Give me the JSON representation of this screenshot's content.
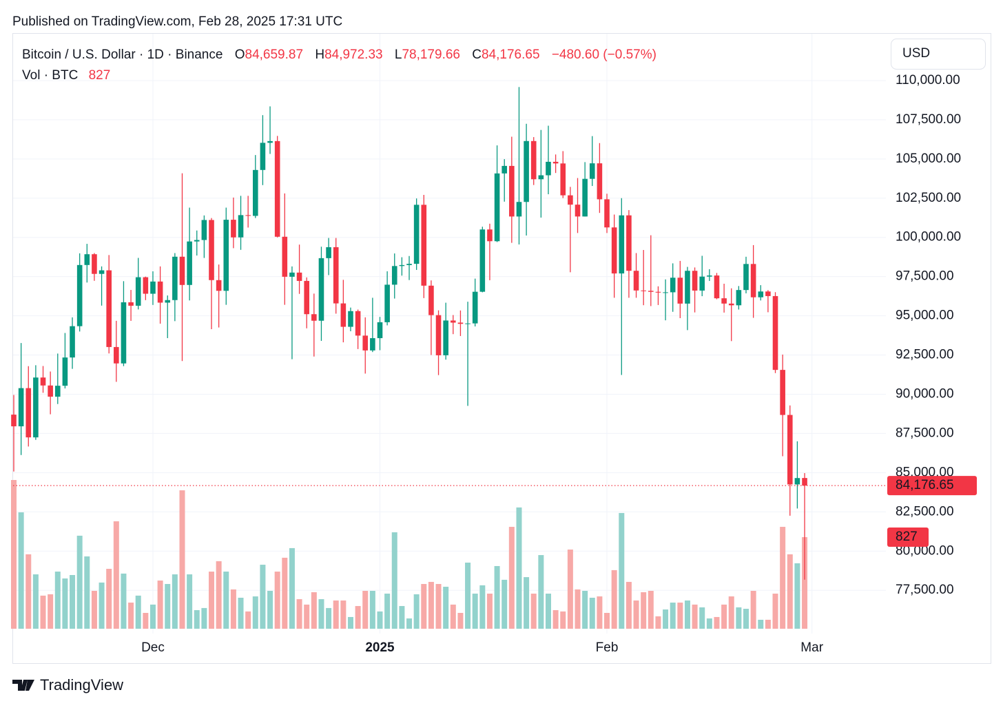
{
  "published": "Published on TradingView.com, Feb 28, 2025 17:31 UTC",
  "brand": "TradingView",
  "chart_data": {
    "type": "candlestick",
    "legend": {
      "symbol": "Bitcoin / U.S. Dollar · 1D · Binance",
      "fields": [
        {
          "key": "O",
          "value": "84,659.87"
        },
        {
          "key": "H",
          "value": "84,972.33"
        },
        {
          "key": "L",
          "value": "78,179.66"
        },
        {
          "key": "C",
          "value": "84,176.65"
        }
      ],
      "change": "−480.60 (−0.57%)",
      "volume_label": "Vol · BTC"
    },
    "currency": "USD",
    "last_close_label": "84,176.65",
    "up_color": "#089981",
    "down_color": "#f23645",
    "up_volume_color": "#92d2cc",
    "down_volume_color": "#f7a9a7",
    "grid": true,
    "ylim": [
      75050,
      112500
    ],
    "yticks": [
      {
        "value": 77500,
        "label": "77,500.00"
      },
      {
        "value": 80000,
        "label": "80,000.00"
      },
      {
        "value": 82500,
        "label": "82,500.00"
      },
      {
        "value": 85000,
        "label": "85,000.00"
      },
      {
        "value": 87500,
        "label": "87,500.00"
      },
      {
        "value": 90000,
        "label": "90,000.00"
      },
      {
        "value": 92500,
        "label": "92,500.00"
      },
      {
        "value": 95000,
        "label": "95,000.00"
      },
      {
        "value": 97500,
        "label": "97,500.00"
      },
      {
        "value": 100000,
        "label": "100,000.00"
      },
      {
        "value": 102500,
        "label": "102,500.00"
      },
      {
        "value": 105000,
        "label": "105,000.00"
      },
      {
        "value": 107500,
        "label": "107,500.00"
      },
      {
        "value": 110000,
        "label": "110,000.00"
      }
    ],
    "xticks": [
      {
        "value": 19,
        "label": "Dec"
      },
      {
        "value": 50,
        "label": "2025"
      },
      {
        "value": 81,
        "label": "Feb"
      },
      {
        "value": 109,
        "label": "Mar"
      }
    ],
    "open": [
      88700,
      87955,
      90390,
      87250,
      91066,
      90558,
      89845,
      90542,
      92343,
      94339,
      98239,
      98927,
      97673,
      97900,
      93010,
      91965,
      95863,
      95643,
      97460,
      96407,
      97185,
      95840,
      96002,
      98768,
      96967,
      99740,
      99832,
      101109,
      97276,
      96593,
      101125,
      100000,
      101420,
      101372,
      104298,
      106029,
      106140,
      100041,
      97490,
      97756,
      97225,
      95104,
      94686,
      98676,
      99376,
      95791,
      94299,
      95300,
      93738,
      92792,
      93576,
      94591,
      96984,
      98174,
      98236,
      98314,
      102078,
      96922,
      95043,
      92484,
      94701,
      94566,
      94488,
      94516,
      96534,
      100505,
      99756,
      104078,
      104557,
      101331,
      102260,
      106143,
      103706,
      103960,
      104819,
      104714,
      102682,
      102087,
      101332,
      103733,
      104722,
      102429,
      100635,
      97700,
      101405,
      97871,
      96615,
      96593,
      96529,
      96482,
      96500,
      97430,
      95778,
      97870,
      96608,
      97500,
      97570,
      96118,
      95780,
      95671,
      96644,
      98305,
      96181,
      96551,
      96258,
      91552,
      88680,
      84250,
      84659.87
    ],
    "high": [
      89956,
      93265,
      91790,
      91850,
      91800,
      91449,
      92594,
      93905,
      94902,
      98984,
      99588,
      99000,
      98150,
      98871,
      94681,
      97208,
      96650,
      98693,
      97499,
      97836,
      98150,
      96297,
      99000,
      104088,
      101898,
      100439,
      101400,
      101234,
      98270,
      101895,
      102540,
      102650,
      102650,
      105250,
      107793,
      108353,
      106470,
      102800,
      98150,
      99540,
      97448,
      96416,
      99404,
      99963,
      99962,
      97294,
      95525,
      95400,
      94903,
      96150,
      94929,
      97839,
      98976,
      98734,
      98813,
      102482,
      102712,
      97258,
      95350,
      95836,
      95050,
      95340,
      95900,
      97371,
      100681,
      100873,
      105865,
      104988,
      106422,
      109588,
      107240,
      106394,
      106850,
      107120,
      105286,
      105500,
      103221,
      103784,
      104800,
      106457,
      106012,
      102783,
      101456,
      102500,
      101740,
      99000,
      99197,
      100137,
      96880,
      97323,
      98345,
      98500,
      98119,
      98083,
      98826,
      97972,
      97732,
      97046,
      96753,
      96899,
      98766,
      99508,
      96955,
      96637,
      96508,
      92530,
      89286,
      87000,
      84972.33
    ],
    "low": [
      85072,
      86127,
      86668,
      87092,
      90093,
      88722,
      89376,
      90370,
      91619,
      94000,
      97122,
      97232,
      95650,
      92600,
      90791,
      91792,
      94677,
      95407,
      96000,
      95693,
      94500,
      93578,
      94660,
      92120,
      95981,
      98844,
      98689,
      94150,
      94256,
      95700,
      99311,
      99206,
      100626,
      101234,
      103333,
      105321,
      100000,
      95700,
      92232,
      96398,
      94202,
      92403,
      93404,
      97595,
      95137,
      93310,
      94014,
      92881,
      91317,
      92690,
      92807,
      94392,
      96100,
      97562,
      97280,
      97926,
      96132,
      92500,
      91220,
      92206,
      93831,
      93712,
      89256,
      94322,
      96500,
      97268,
      99700,
      102278,
      99651,
      99550,
      100119,
      103339,
      101262,
      102750,
      104106,
      102505,
      97777,
      100279,
      101328,
      103278,
      101560,
      100279,
      96150,
      91231,
      96150,
      96150,
      95676,
      95620,
      95688,
      94713,
      95256,
      94850,
      94088,
      95217,
      96252,
      97223,
      96055,
      95205,
      93388,
      95401,
      96432,
      94871,
      95979,
      95227,
      91349,
      86050,
      82256,
      82716,
      78179.66
    ],
    "close": [
      87955,
      90390,
      87250,
      91066,
      90558,
      89845,
      90542,
      92343,
      94339,
      98239,
      98927,
      97673,
      97900,
      93010,
      91965,
      95863,
      95643,
      97460,
      96407,
      97185,
      95840,
      96002,
      98768,
      96967,
      99740,
      99832,
      101109,
      97276,
      96593,
      101125,
      100000,
      101420,
      101372,
      104298,
      106029,
      106140,
      100041,
      97490,
      97756,
      97225,
      95104,
      94686,
      98676,
      99376,
      95791,
      94299,
      95300,
      93738,
      92792,
      93576,
      94591,
      96984,
      98174,
      98236,
      98314,
      102078,
      96922,
      95043,
      92484,
      94701,
      94566,
      94488,
      94516,
      96534,
      100505,
      99756,
      104078,
      104557,
      101331,
      102260,
      106143,
      103706,
      103960,
      104819,
      104714,
      102682,
      102087,
      101332,
      103733,
      104722,
      102429,
      100635,
      97700,
      101405,
      97871,
      96615,
      96593,
      96529,
      96482,
      96500,
      97430,
      95778,
      97870,
      96608,
      97500,
      97570,
      96118,
      95780,
      95671,
      96644,
      98305,
      96181,
      96551,
      96258,
      91552,
      88680,
      84250,
      84657,
      84176.65
    ],
    "volume": [
      1343,
      1051,
      672,
      491,
      299,
      311,
      516,
      454,
      485,
      840,
      653,
      342,
      417,
      541,
      970,
      498,
      236,
      299,
      143,
      218,
      435,
      404,
      491,
      1250,
      491,
      168,
      187,
      516,
      610,
      516,
      355,
      280,
      156,
      292,
      578,
      342,
      516,
      641,
      728,
      267,
      218,
      330,
      267,
      187,
      255,
      255,
      106,
      205,
      342,
      342,
      156,
      317,
      871,
      205,
      93,
      311,
      404,
      423,
      404,
      379,
      218,
      143,
      597,
      317,
      392,
      317,
      566,
      442,
      920,
      1095,
      466,
      317,
      665,
      317,
      168,
      156,
      715,
      355,
      342,
      280,
      292,
      143,
      529,
      1045,
      423,
      255,
      330,
      342,
      112,
      174,
      236,
      236,
      255,
      218,
      193,
      93,
      106,
      218,
      292,
      193,
      180,
      342,
      81,
      81,
      317,
      920,
      672,
      591,
      827
    ]
  }
}
